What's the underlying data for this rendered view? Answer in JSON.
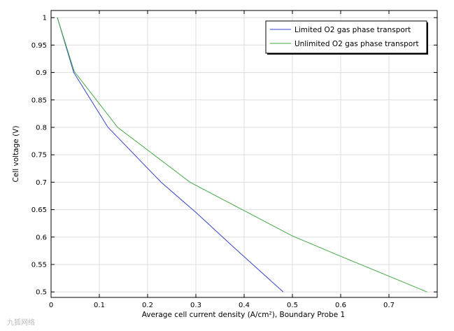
{
  "chart_data": {
    "type": "line",
    "xlabel": "Average cell current density (A/cm²), Boundary Probe 1",
    "ylabel": "Cell voltage (V)",
    "xlim": [
      0,
      0.8
    ],
    "ylim": [
      0.49,
      1.013
    ],
    "x_ticks": [
      0,
      0.1,
      0.2,
      0.3,
      0.4,
      0.5,
      0.6,
      0.7
    ],
    "x_tick_labels": [
      "0",
      "0.1",
      "0.2",
      "0.3",
      "0.4",
      "0.5",
      "0.6",
      "0.7"
    ],
    "y_ticks": [
      0.5,
      0.55,
      0.6,
      0.65,
      0.7,
      0.75,
      0.8,
      0.85,
      0.9,
      0.95,
      1
    ],
    "y_tick_labels": [
      "0.5",
      "0.55",
      "0.6",
      "0.65",
      "0.7",
      "0.75",
      "0.8",
      "0.85",
      "0.9",
      "0.95",
      "1"
    ],
    "grid": true,
    "legend_position": "top-right",
    "series": [
      {
        "name": "Limited O2 gas phase transport",
        "color": "#3344cc",
        "x": [
          0.013,
          0.047,
          0.118,
          0.228,
          0.3,
          0.38,
          0.481
        ],
        "y": [
          1.0,
          0.9,
          0.8,
          0.7,
          0.645,
          0.58,
          0.5
        ]
      },
      {
        "name": "Unlimited O2 gas phase transport",
        "color": "#44aa44",
        "x": [
          0.013,
          0.048,
          0.138,
          0.288,
          0.5,
          0.6,
          0.779
        ],
        "y": [
          1.0,
          0.902,
          0.8,
          0.7,
          0.602,
          0.565,
          0.5
        ]
      }
    ]
  },
  "watermark": "九狐网络"
}
